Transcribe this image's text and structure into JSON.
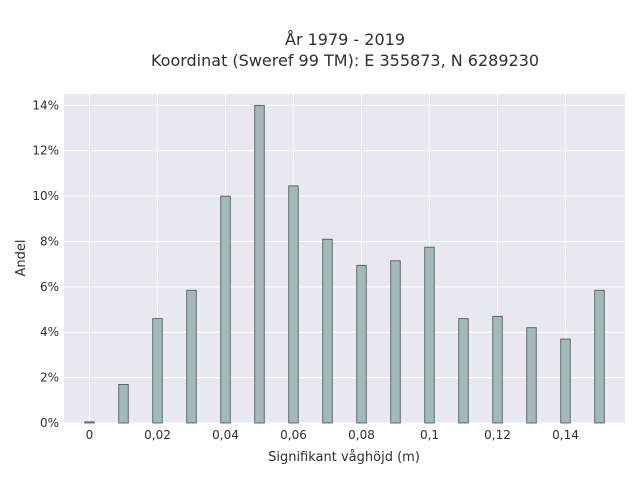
{
  "chart_data": {
    "type": "bar",
    "title_line1": "År 1979 - 2019",
    "title_line2": "Koordinat (Sweref 99 TM): E 355873, N 6289230",
    "xlabel": "Signifikant våghöjd (m)",
    "ylabel": "Andel",
    "x": [
      0,
      0.01,
      0.02,
      0.03,
      0.04,
      0.05,
      0.06,
      0.07,
      0.08,
      0.09,
      0.1,
      0.11,
      0.12,
      0.13,
      0.14,
      0.15
    ],
    "values": [
      0.05,
      1.7,
      4.6,
      5.85,
      10.0,
      14.0,
      10.45,
      8.1,
      6.95,
      7.15,
      7.75,
      4.6,
      4.7,
      4.2,
      3.7,
      5.85
    ],
    "x_ticks": [
      0,
      0.02,
      0.04,
      0.06,
      0.08,
      0.1,
      0.12,
      0.14
    ],
    "x_tick_labels": [
      "0",
      "0,02",
      "0,04",
      "0,06",
      "0,08",
      "0,1",
      "0,12",
      "0,14"
    ],
    "y_ticks": [
      0,
      2,
      4,
      6,
      8,
      10,
      12,
      14
    ],
    "y_tick_labels": [
      "0%",
      "2%",
      "4%",
      "6%",
      "8%",
      "10%",
      "12%",
      "14%"
    ],
    "xlim": [
      -0.0075,
      0.1575
    ],
    "ylim": [
      0,
      14.5
    ],
    "grid": true,
    "colors": {
      "plot_bg": "#e8e8f0",
      "bar_fill": "#a3b8b8",
      "bar_stroke": "#3e5250",
      "grid": "#ffffff",
      "text": "#2f2f2f"
    }
  }
}
